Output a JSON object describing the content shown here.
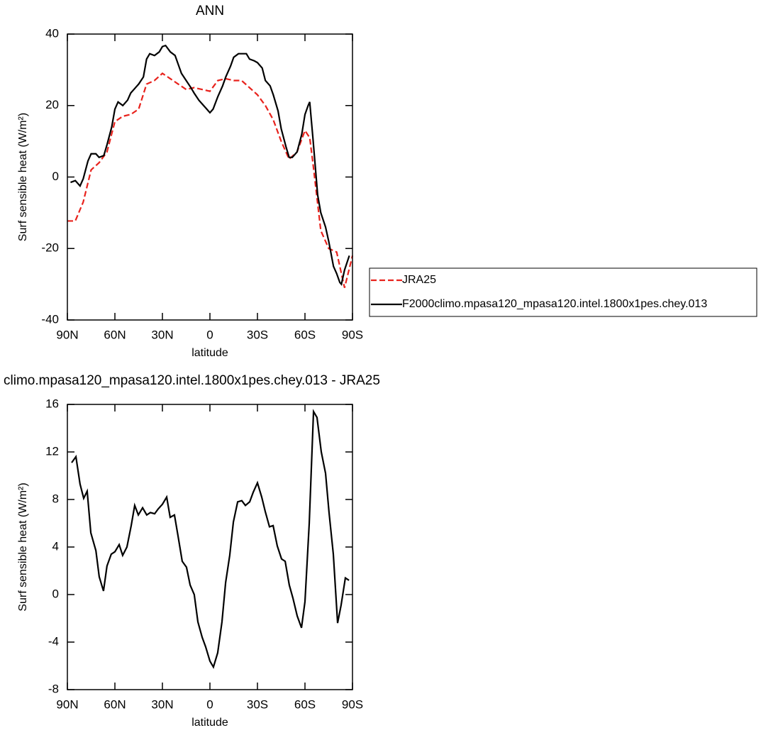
{
  "chart_data": [
    {
      "type": "line",
      "title": "ANN",
      "x_label": "latitude",
      "y_label": "Surf sensible heat (W/m²)",
      "xlim": [
        90,
        -90
      ],
      "xticks": [
        {
          "value": 90,
          "label": "90N"
        },
        {
          "value": 60,
          "label": "60N"
        },
        {
          "value": 30,
          "label": "30N"
        },
        0,
        {
          "value": -30,
          "label": "30S"
        },
        {
          "value": -60,
          "label": "60S"
        },
        {
          "value": -90,
          "label": "90S"
        }
      ],
      "ylim": [
        -40,
        40
      ],
      "yticks": [
        -40,
        -20,
        0,
        20,
        40
      ],
      "legend": "outside-right",
      "series": [
        {
          "name": "JRA25",
          "color": "#e8221c",
          "line_style": "dashed",
          "x": [
            90,
            85,
            80,
            75,
            70,
            65,
            60,
            55,
            50,
            45,
            40,
            35,
            30,
            25,
            20,
            15,
            10,
            5,
            0,
            -5,
            -10,
            -15,
            -20,
            -25,
            -30,
            -35,
            -40,
            -45,
            -50,
            -55,
            -60,
            -63,
            -65,
            -70,
            -75,
            -80,
            -85,
            -90
          ],
          "values": [
            -12.3,
            -12.3,
            -7,
            2,
            4,
            7,
            15.5,
            17,
            17.5,
            19,
            26,
            27,
            29,
            27.5,
            26,
            24.5,
            25,
            24.5,
            24,
            27,
            27.5,
            27,
            27,
            25,
            23,
            20,
            16,
            10,
            5,
            7,
            13,
            11,
            4,
            -15,
            -20,
            -21,
            -31,
            -22
          ]
        },
        {
          "name": "F2000climo.mpasa120_mpasa120.intel.1800x1pes.chey.013",
          "color": "#000000",
          "line_style": "solid",
          "x": [
            88,
            85,
            82,
            80,
            77,
            75,
            72,
            70,
            67,
            65,
            62,
            60,
            58,
            55,
            52,
            50,
            47,
            45,
            42,
            40,
            38,
            35,
            32,
            30,
            28,
            25,
            22,
            20,
            18,
            15,
            12,
            10,
            7,
            5,
            3,
            0,
            -2,
            -5,
            -8,
            -10,
            -13,
            -15,
            -18,
            -20,
            -23,
            -25,
            -28,
            -30,
            -33,
            -35,
            -38,
            -40,
            -43,
            -45,
            -48,
            -50,
            -52,
            -55,
            -58,
            -60,
            -62,
            -63,
            -65,
            -68,
            -70,
            -73,
            -75,
            -78,
            -80,
            -82,
            -83,
            -85,
            -88
          ],
          "values": [
            -1.5,
            -1,
            -2.5,
            -0.5,
            4.5,
            6.5,
            6.5,
            5.5,
            6,
            9,
            14,
            19,
            21,
            20,
            21.5,
            23.5,
            25,
            26,
            28,
            33,
            34.5,
            34,
            35,
            36.5,
            36.8,
            35,
            34,
            31.5,
            29,
            27,
            25,
            23.5,
            21.5,
            20.5,
            19.5,
            18,
            19,
            22.5,
            25.5,
            28,
            31,
            33.5,
            34.5,
            34.5,
            34.5,
            33,
            32.5,
            32,
            30.5,
            27,
            25.5,
            23,
            18.5,
            13.5,
            8.5,
            5.5,
            5.5,
            7,
            12,
            17.5,
            20,
            21,
            11,
            -5,
            -10,
            -14,
            -18,
            -25,
            -27,
            -29.5,
            -30,
            -26,
            -22
          ]
        }
      ]
    },
    {
      "type": "line",
      "title": "climo.mpasa120_mpasa120.intel.1800x1pes.chey.013 - JRA25",
      "x_label": "latitude",
      "y_label": "Surf sensible heat (W/m²)",
      "xlim": [
        90,
        -90
      ],
      "xticks": [
        {
          "value": 90,
          "label": "90N"
        },
        {
          "value": 60,
          "label": "60N"
        },
        {
          "value": 30,
          "label": "30N"
        },
        0,
        {
          "value": -30,
          "label": "30S"
        },
        {
          "value": -60,
          "label": "60S"
        },
        {
          "value": -90,
          "label": "90S"
        }
      ],
      "ylim": [
        -8,
        16
      ],
      "yticks": [
        -8,
        -4,
        0,
        4,
        8,
        12,
        16
      ],
      "series": [
        {
          "color": "#000000",
          "line_style": "solid",
          "x": [
            87.3,
            84.6,
            82,
            79.7,
            77.5,
            75.2,
            72,
            69.9,
            67.2,
            65,
            62.3,
            60,
            57.3,
            55.1,
            52.4,
            49.7,
            47.5,
            45.2,
            42.5,
            39.9,
            37.6,
            34.9,
            32.7,
            30,
            27.3,
            25.1,
            22.4,
            20.1,
            17.5,
            14.8,
            12.5,
            9.9,
            7.6,
            4.9,
            2.7,
            0,
            -2.2,
            -4.9,
            -7.6,
            -9.9,
            -12.5,
            -14.8,
            -17.5,
            -20.1,
            -22.4,
            -25.1,
            -27.3,
            -30,
            -32.7,
            -34.9,
            -37.6,
            -39.9,
            -42.5,
            -45.2,
            -47.5,
            -50.1,
            -52.4,
            -55.1,
            -57.8,
            -60,
            -62.7,
            -65.4,
            -67.6,
            -70.3,
            -73,
            -75.2,
            -77.9,
            -80.6,
            -82.8,
            -85.5,
            -87.8
          ],
          "values": [
            11.1,
            11.6,
            9.3,
            8.1,
            8.7,
            5.2,
            3.7,
            1.5,
            0.3,
            2.4,
            3.4,
            3.6,
            4.2,
            3.3,
            4,
            5.8,
            7.5,
            6.7,
            7.3,
            6.7,
            6.9,
            6.8,
            7.2,
            7.6,
            8.2,
            6.5,
            6.7,
            4.9,
            2.8,
            2.3,
            0.8,
            0,
            -2.3,
            -3.6,
            -4.4,
            -5.6,
            -6.1,
            -4.9,
            -2.3,
            1,
            3.3,
            6.1,
            7.8,
            7.9,
            7.5,
            7.8,
            8.6,
            9.4,
            8.2,
            7,
            5.7,
            5.8,
            4.1,
            3,
            2.8,
            0.8,
            -0.3,
            -1.8,
            -2.8,
            -0.6,
            6,
            15.4,
            14.9,
            12,
            10.2,
            6.9,
            3.4,
            -2.4,
            -0.9,
            1.4,
            1.2
          ]
        }
      ]
    }
  ]
}
